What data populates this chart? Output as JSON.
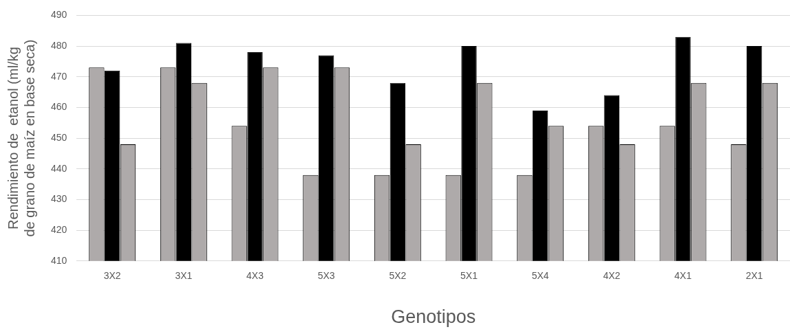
{
  "chart_data": {
    "type": "bar",
    "xlabel": "Genotipos",
    "ylabel": "Rendimiento de  etanol (ml/kg de grano de maíz en base seca)",
    "categories": [
      "3X2",
      "3X1",
      "4X3",
      "5X3",
      "5X2",
      "5X1",
      "5X4",
      "4X2",
      "4X1",
      "2X1"
    ],
    "series": [
      {
        "color": "#aeaaaa",
        "values": [
          473,
          473,
          454,
          438,
          438,
          438,
          438,
          454,
          454,
          448
        ]
      },
      {
        "color": "#000000",
        "values": [
          472,
          481,
          478,
          477,
          468,
          480,
          459,
          464,
          483,
          480
        ]
      },
      {
        "color": "#aeaaaa",
        "values": [
          448,
          468,
          473,
          473,
          448,
          468,
          454,
          448,
          468,
          468
        ]
      }
    ],
    "ylim": [
      410,
      490
    ],
    "yticks": [
      410,
      420,
      430,
      440,
      450,
      460,
      470,
      480,
      490
    ],
    "grid": "y",
    "legend": false
  }
}
